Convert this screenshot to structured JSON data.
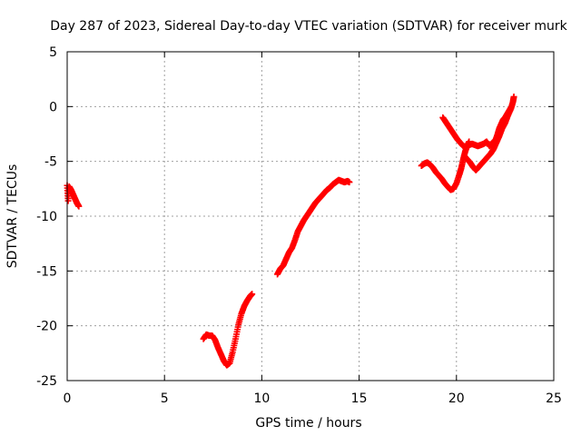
{
  "chart_data": {
    "type": "scatter",
    "title": "Day 287 of 2023, Sidereal Day-to-day VTEC variation (SDTVAR) for receiver murk",
    "xlabel": "GPS time / hours",
    "ylabel": "SDTVAR / TECUs",
    "xlim": [
      0,
      25
    ],
    "ylim": [
      -25,
      5
    ],
    "xticks": [
      0,
      5,
      10,
      15,
      20,
      25
    ],
    "yticks": [
      -25,
      -20,
      -15,
      -10,
      -5,
      0,
      5
    ],
    "grid": true,
    "grid_style": "dotted",
    "marker": "plus",
    "marker_color": "#ff0000",
    "series": [
      {
        "segments": [
          [
            [
              0.0,
              -7.2
            ],
            [
              0.05,
              -8.6
            ],
            [
              0.1,
              -7.3
            ],
            [
              0.2,
              -7.6
            ],
            [
              0.3,
              -8.0
            ],
            [
              0.4,
              -8.4
            ],
            [
              0.5,
              -8.8
            ],
            [
              0.6,
              -9.1
            ]
          ],
          [
            [
              7.0,
              -21.2
            ],
            [
              7.15,
              -20.8
            ],
            [
              7.3,
              -20.9
            ],
            [
              7.45,
              -20.9
            ],
            [
              7.6,
              -21.3
            ],
            [
              7.75,
              -22.0
            ],
            [
              7.9,
              -22.6
            ],
            [
              8.05,
              -23.2
            ],
            [
              8.2,
              -23.6
            ],
            [
              8.35,
              -23.4
            ],
            [
              8.5,
              -22.4
            ],
            [
              8.65,
              -21.2
            ],
            [
              8.8,
              -19.9
            ],
            [
              8.95,
              -18.9
            ],
            [
              9.1,
              -18.2
            ],
            [
              9.25,
              -17.7
            ],
            [
              9.4,
              -17.3
            ],
            [
              9.5,
              -17.1
            ]
          ],
          [
            [
              10.8,
              -15.3
            ],
            [
              10.95,
              -14.8
            ],
            [
              11.1,
              -14.5
            ],
            [
              11.25,
              -13.9
            ],
            [
              11.4,
              -13.3
            ],
            [
              11.55,
              -12.9
            ],
            [
              11.7,
              -12.2
            ],
            [
              11.85,
              -11.4
            ],
            [
              12.0,
              -10.9
            ],
            [
              12.15,
              -10.4
            ],
            [
              12.3,
              -10.0
            ],
            [
              12.45,
              -9.6
            ],
            [
              12.6,
              -9.2
            ],
            [
              12.75,
              -8.8
            ],
            [
              12.9,
              -8.5
            ],
            [
              13.05,
              -8.2
            ],
            [
              13.2,
              -7.9
            ],
            [
              13.35,
              -7.6
            ],
            [
              13.5,
              -7.4
            ],
            [
              13.65,
              -7.1
            ],
            [
              13.8,
              -6.9
            ],
            [
              13.95,
              -6.7
            ],
            [
              14.1,
              -6.8
            ],
            [
              14.25,
              -6.9
            ],
            [
              14.4,
              -6.8
            ],
            [
              14.5,
              -6.9
            ]
          ],
          [
            [
              18.2,
              -5.4
            ],
            [
              18.35,
              -5.2
            ],
            [
              18.5,
              -5.1
            ],
            [
              18.65,
              -5.3
            ],
            [
              18.8,
              -5.6
            ],
            [
              18.95,
              -6.0
            ],
            [
              19.1,
              -6.3
            ],
            [
              19.25,
              -6.6
            ],
            [
              19.4,
              -7.0
            ],
            [
              19.55,
              -7.3
            ],
            [
              19.7,
              -7.6
            ],
            [
              19.85,
              -7.5
            ],
            [
              20.0,
              -7.0
            ],
            [
              20.15,
              -6.2
            ],
            [
              20.25,
              -5.6
            ],
            [
              20.35,
              -4.8
            ],
            [
              20.45,
              -4.1
            ],
            [
              20.55,
              -3.6
            ],
            [
              20.65,
              -3.2
            ]
          ],
          [
            [
              19.3,
              -1.0
            ],
            [
              19.45,
              -1.4
            ],
            [
              19.6,
              -1.8
            ],
            [
              19.75,
              -2.2
            ],
            [
              19.9,
              -2.6
            ],
            [
              20.05,
              -3.0
            ],
            [
              20.2,
              -3.3
            ],
            [
              20.35,
              -3.6
            ],
            [
              20.5,
              -3.7
            ],
            [
              20.65,
              -3.5
            ],
            [
              20.8,
              -3.4
            ],
            [
              20.95,
              -3.5
            ],
            [
              21.1,
              -3.6
            ],
            [
              21.25,
              -3.5
            ],
            [
              21.4,
              -3.4
            ],
            [
              21.55,
              -3.2
            ],
            [
              21.7,
              -3.6
            ],
            [
              21.85,
              -3.3
            ],
            [
              22.0,
              -3.1
            ],
            [
              22.1,
              -2.6
            ],
            [
              22.2,
              -2.0
            ],
            [
              22.3,
              -1.6
            ],
            [
              22.4,
              -1.2
            ],
            [
              22.5,
              -1.0
            ],
            [
              22.6,
              -0.7
            ],
            [
              22.7,
              -0.4
            ],
            [
              22.8,
              -0.1
            ]
          ],
          [
            [
              20.4,
              -4.5
            ],
            [
              20.55,
              -4.8
            ],
            [
              20.7,
              -5.1
            ],
            [
              20.85,
              -5.5
            ],
            [
              21.0,
              -5.8
            ],
            [
              21.15,
              -5.5
            ],
            [
              21.3,
              -5.2
            ],
            [
              21.45,
              -4.9
            ],
            [
              21.6,
              -4.6
            ],
            [
              21.75,
              -4.3
            ],
            [
              21.9,
              -3.9
            ],
            [
              22.05,
              -3.3
            ],
            [
              22.2,
              -2.7
            ],
            [
              22.35,
              -2.0
            ],
            [
              22.5,
              -1.5
            ],
            [
              22.65,
              -0.8
            ],
            [
              22.8,
              -0.2
            ],
            [
              22.9,
              0.4
            ],
            [
              22.95,
              0.9
            ]
          ]
        ]
      }
    ]
  }
}
